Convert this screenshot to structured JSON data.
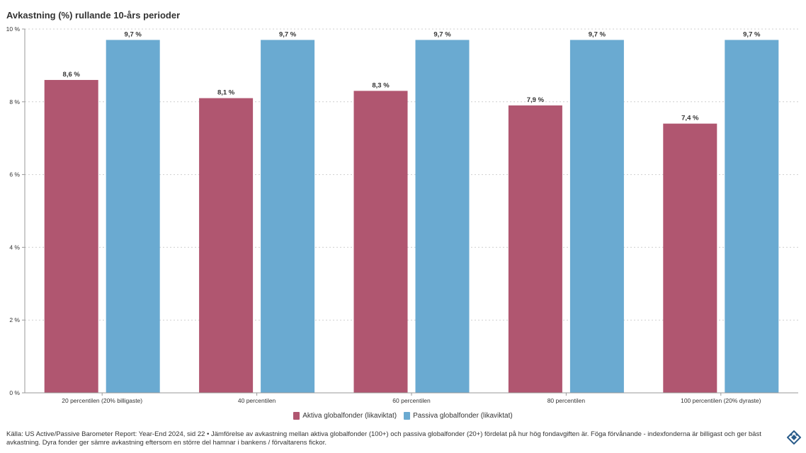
{
  "chart_data": {
    "type": "bar",
    "title": "Avkastning (%) rullande 10-års perioder",
    "categories": [
      "20 percentilen (20% billigaste)",
      "40 percentilen",
      "60 percentilen",
      "80 percentilen",
      "100 percentilen (20% dyraste)"
    ],
    "series": [
      {
        "name": "Aktiva globalfonder (likaviktat)",
        "color": "#b05670",
        "values": [
          8.6,
          8.1,
          8.3,
          7.9,
          7.4
        ],
        "labels": [
          "8,6 %",
          "8,1 %",
          "8,3 %",
          "7,9 %",
          "7,4 %"
        ]
      },
      {
        "name": "Passiva globalfonder (likaviktat)",
        "color": "#6aaad1",
        "values": [
          9.7,
          9.7,
          9.7,
          9.7,
          9.7
        ],
        "labels": [
          "9,7 %",
          "9,7 %",
          "9,7 %",
          "9,7 %",
          "9,7 %"
        ]
      }
    ],
    "yticks": [
      0,
      2,
      4,
      6,
      8,
      10
    ],
    "ytick_labels": [
      "0 %",
      "2 %",
      "4 %",
      "6 %",
      "8 %",
      "10 %"
    ],
    "ylim": [
      0,
      10
    ],
    "xlabel": "",
    "ylabel": "",
    "grid": true,
    "legend_position": "bottom-center"
  },
  "source_text": "Källa: US Active/Passive Barometer Report: Year-End 2024, sid 22 • Jämförelse av avkastning mellan aktiva globalfonder (100+) och passiva globalfonder (20+) fördelat på hur hög fondavgiften är. Föga förvånande - indexfonderna är billigast och ger bäst avkastning. Dyra fonder ger sämre avkastning eftersom en större del hamnar i bankens / förvaltarens fickor.",
  "logo_icon": "brand-logo-icon"
}
